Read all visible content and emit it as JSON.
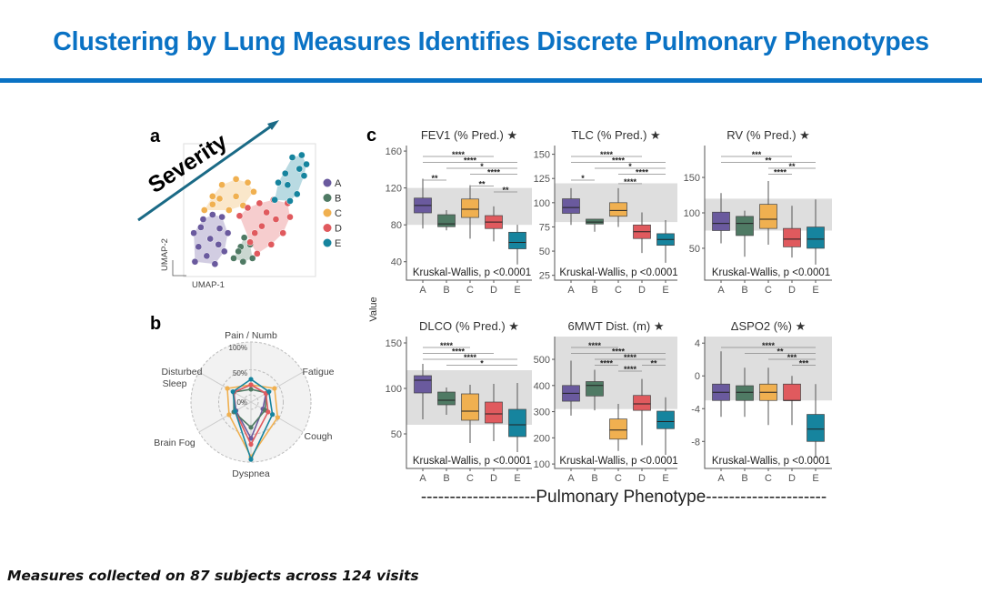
{
  "slide": {
    "title": "Clustering by Lung Measures Identifies Discrete Pulmonary Phenotypes",
    "footer": "Measures collected on 87 subjects across 124 visits"
  },
  "colors": {
    "title": "#0a72c4",
    "A": "#6a5a9e",
    "B": "#4f7a64",
    "C": "#f0b050",
    "D": "#e05a5e",
    "E": "#16849e",
    "normal_band": "#dedede"
  },
  "chart_data": [
    {
      "panel": "a",
      "type": "scatter",
      "xlabel": "UMAP-1",
      "ylabel": "UMAP-2",
      "annotation": "Severity",
      "legend": [
        "A",
        "B",
        "C",
        "D",
        "E"
      ],
      "legend_position": "right",
      "series": [
        {
          "name": "A",
          "points": [
            [
              5,
              5
            ],
            [
              8,
              18
            ],
            [
              4,
              30
            ],
            [
              12,
              42
            ],
            [
              20,
              46
            ],
            [
              28,
              44
            ],
            [
              33,
              30
            ],
            [
              30,
              14
            ],
            [
              22,
              3
            ],
            [
              15,
              10
            ],
            [
              18,
              25
            ],
            [
              25,
              20
            ],
            [
              10,
              35
            ],
            [
              26,
              34
            ]
          ]
        },
        {
          "name": "B",
          "points": [
            [
              38,
              8
            ],
            [
              44,
              18
            ],
            [
              47,
              26
            ],
            [
              52,
              20
            ],
            [
              54,
              8
            ],
            [
              46,
              5
            ],
            [
              42,
              14
            ]
          ]
        },
        {
          "name": "C",
          "points": [
            [
              13,
              50
            ],
            [
              20,
              62
            ],
            [
              28,
              72
            ],
            [
              40,
              77
            ],
            [
              50,
              74
            ],
            [
              55,
              66
            ],
            [
              46,
              54
            ],
            [
              34,
              50
            ],
            [
              26,
              60
            ],
            [
              40,
              62
            ],
            [
              20,
              55
            ]
          ]
        },
        {
          "name": "D",
          "points": [
            [
              43,
              45
            ],
            [
              50,
              52
            ],
            [
              60,
              56
            ],
            [
              72,
              59
            ],
            [
              84,
              56
            ],
            [
              86,
              44
            ],
            [
              80,
              30
            ],
            [
              70,
              20
            ],
            [
              58,
              12
            ],
            [
              52,
              22
            ],
            [
              62,
              36
            ],
            [
              74,
              42
            ],
            [
              66,
              48
            ],
            [
              56,
              30
            ]
          ]
        },
        {
          "name": "E",
          "points": [
            [
              73,
              59
            ],
            [
              76,
              74
            ],
            [
              82,
              82
            ],
            [
              88,
              96
            ],
            [
              96,
              98
            ],
            [
              100,
              90
            ],
            [
              98,
              80
            ],
            [
              92,
              64
            ],
            [
              86,
              58
            ],
            [
              84,
              72
            ],
            [
              94,
              86
            ]
          ]
        }
      ]
    },
    {
      "panel": "b",
      "type": "radar",
      "axes": [
        "Pain / Numb",
        "Fatigue",
        "Cough",
        "Dyspnea",
        "Brain Fog",
        "Disturbed Sleep"
      ],
      "ring_labels": [
        "0%",
        "50%",
        "100%"
      ],
      "series": [
        {
          "name": "A",
          "values": [
            20,
            20,
            13,
            58,
            20,
            25
          ]
        },
        {
          "name": "B",
          "values": [
            11,
            22,
            18,
            36,
            25,
            25
          ]
        },
        {
          "name": "C",
          "values": [
            20,
            40,
            47,
            95,
            36,
            40
          ]
        },
        {
          "name": "D",
          "values": [
            20,
            20,
            25,
            70,
            22,
            25
          ]
        },
        {
          "name": "E",
          "values": [
            31,
            27,
            35,
            100,
            22,
            27
          ]
        }
      ]
    },
    {
      "panel": "c",
      "type": "box",
      "ylabel": "Value",
      "xlabel": "--------------------Pulmonary Phenotype---------------------",
      "categories": [
        "A",
        "B",
        "C",
        "D",
        "E"
      ],
      "plots": [
        {
          "title": "FEV1 (% Pred.) ★",
          "ylim": [
            20,
            166
          ],
          "yticks": [
            40,
            80,
            120,
            160
          ],
          "normal_band": [
            80,
            120
          ],
          "test": "Kruskal-Wallis, p <0.0001",
          "boxes": [
            [
              76,
              93,
              101,
              109,
              130
            ],
            [
              74,
              78,
              81,
              91,
              96
            ],
            [
              65,
              88,
              97,
              108,
              123
            ],
            [
              62,
              76,
              83,
              90,
              100
            ],
            [
              37,
              54,
              61,
              72,
              80
            ]
          ],
          "brackets": [
            [
              "A",
              "D",
              "****",
              0
            ],
            [
              "A",
              "E",
              "****",
              1
            ],
            [
              "B",
              "E",
              "*",
              2
            ],
            [
              "C",
              "E",
              "****",
              3
            ],
            [
              "A",
              "B",
              "**",
              4
            ],
            [
              "C",
              "D",
              "**",
              5
            ],
            [
              "D",
              "E",
              "**",
              6
            ]
          ]
        },
        {
          "title": "TLC (% Pred.) ★",
          "ylim": [
            20,
            159
          ],
          "yticks": [
            25,
            50,
            75,
            100,
            125,
            150
          ],
          "normal_band": [
            80,
            120
          ],
          "test": "Kruskal-Wallis, p <0.0001",
          "boxes": [
            [
              77,
              89,
              95,
              104,
              115
            ],
            [
              70,
              78,
              80,
              83,
              83
            ],
            [
              75,
              86,
              92,
              100,
              115
            ],
            [
              48,
              63,
              70,
              77,
              90
            ],
            [
              38,
              56,
              62,
              68,
              82
            ]
          ],
          "brackets": [
            [
              "A",
              "D",
              "****",
              0
            ],
            [
              "A",
              "E",
              "****",
              1
            ],
            [
              "B",
              "E",
              "*",
              2
            ],
            [
              "C",
              "E",
              "****",
              3
            ],
            [
              "A",
              "B",
              "*",
              4
            ],
            [
              "C",
              "D",
              "****",
              4.6
            ]
          ]
        },
        {
          "title": "RV (% Pred.) ★",
          "ylim": [
            5,
            195
          ],
          "yticks": [
            50,
            100,
            150
          ],
          "normal_band": [
            75,
            120
          ],
          "test": "Kruskal-Wallis, p <0.0001",
          "boxes": [
            [
              57,
              75,
              85,
              101,
              128
            ],
            [
              38,
              68,
              85,
              95,
              103
            ],
            [
              55,
              78,
              91,
              112,
              145
            ],
            [
              37,
              52,
              63,
              78,
              110
            ],
            [
              27,
              50,
              63,
              80,
              119
            ]
          ],
          "brackets": [
            [
              "A",
              "D",
              "***",
              0
            ],
            [
              "A",
              "E",
              "**",
              1
            ],
            [
              "C",
              "E",
              "**",
              2
            ],
            [
              "C",
              "D",
              "****",
              3
            ]
          ]
        },
        {
          "title": "DLCO (% Pred.) ★",
          "ylim": [
            12,
            157
          ],
          "yticks": [
            50,
            100,
            150
          ],
          "normal_band": [
            60,
            120
          ],
          "test": "Kruskal-Wallis, p <0.0001",
          "boxes": [
            [
              66,
              95,
              109,
              114,
              127
            ],
            [
              71,
              82,
              87,
              96,
              101
            ],
            [
              40,
              65,
              75,
              94,
              104
            ],
            [
              42,
              62,
              72,
              85,
              105
            ],
            [
              30,
              47,
              60,
              77,
              106
            ]
          ],
          "brackets": [
            [
              "A",
              "C",
              "****",
              0
            ],
            [
              "A",
              "D",
              "****",
              1
            ],
            [
              "A",
              "E",
              "****",
              2
            ],
            [
              "B",
              "E",
              "*",
              3
            ]
          ]
        },
        {
          "title": "6MWT Dist. (m) ★",
          "ylim": [
            83,
            587
          ],
          "yticks": [
            100,
            200,
            300,
            400,
            500
          ],
          "normal_band": [
            310,
            587
          ],
          "test": "Kruskal-Wallis, p <0.0001",
          "boxes": [
            [
              285,
              340,
              370,
              400,
              495
            ],
            [
              305,
              360,
              400,
              415,
              460
            ],
            [
              150,
              195,
              230,
              272,
              330
            ],
            [
              172,
              305,
              330,
              362,
              425
            ],
            [
              135,
              235,
              262,
              302,
              355
            ]
          ],
          "brackets": [
            [
              "A",
              "C",
              "****",
              0
            ],
            [
              "A",
              "E",
              "****",
              1
            ],
            [
              "B",
              "E",
              "****",
              2
            ],
            [
              "B",
              "C",
              "****",
              3
            ],
            [
              "D",
              "E",
              "**",
              3
            ],
            [
              "C",
              "D",
              "****",
              4
            ]
          ]
        },
        {
          "title": "ΔSPO2 (%) ★",
          "ylim": [
            -11.3,
            4.8
          ],
          "yticks": [
            -8,
            -4,
            0,
            4
          ],
          "normal_band": [
            -3,
            4.8
          ],
          "test": "Kruskal-Wallis, p <0.0001",
          "boxes": [
            [
              -5,
              -3,
              -2,
              -1,
              3
            ],
            [
              -5,
              -3,
              -2,
              -1.2,
              1
            ],
            [
              -6,
              -3,
              -2,
              -1,
              1
            ],
            [
              -6,
              -3,
              -3,
              -1,
              0
            ],
            [
              -10,
              -8,
              -6.5,
              -4.7,
              -1
            ]
          ],
          "brackets": [
            [
              "A",
              "E",
              "****",
              0
            ],
            [
              "B",
              "E",
              "**",
              1
            ],
            [
              "C",
              "E",
              "***",
              2
            ],
            [
              "D",
              "E",
              "***",
              3
            ]
          ]
        }
      ]
    }
  ],
  "panel_labels": {
    "a": "a",
    "b": "b",
    "c": "c"
  }
}
